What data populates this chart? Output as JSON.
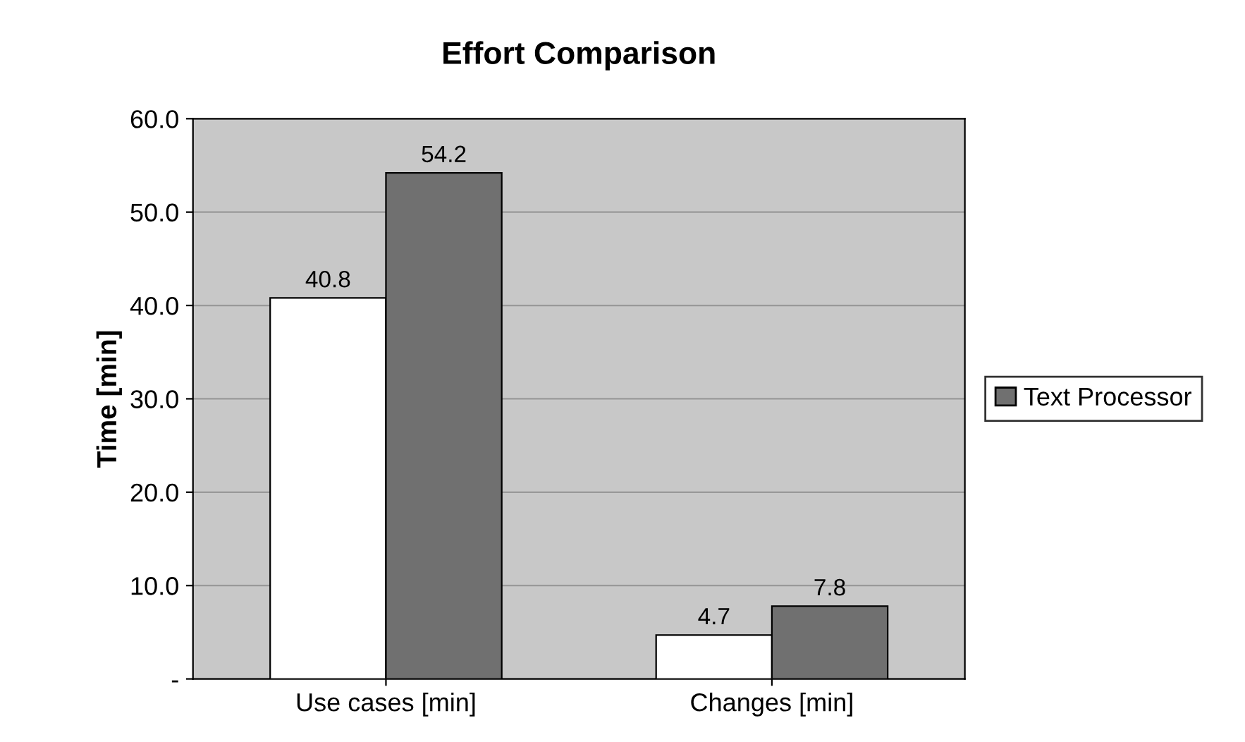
{
  "chart_data": {
    "type": "bar",
    "title": "Effort Comparison",
    "ylabel": "Time [min]",
    "categories": [
      "Use cases [min]",
      "Changes [min]"
    ],
    "series": [
      {
        "color": "#ffffff",
        "values": [
          40.8,
          4.7
        ]
      },
      {
        "name": "Text Processor",
        "color": "#707070",
        "values": [
          54.2,
          7.8
        ]
      }
    ],
    "ylim": [
      0,
      60
    ],
    "yticks": [
      {
        "value": 0,
        "label": "-"
      },
      {
        "value": 10,
        "label": "10.0"
      },
      {
        "value": 20,
        "label": "20.0"
      },
      {
        "value": 30,
        "label": "30.0"
      },
      {
        "value": 40,
        "label": "40.0"
      },
      {
        "value": 50,
        "label": "50.0"
      },
      {
        "value": 60,
        "label": "60.0"
      }
    ],
    "grid": "y",
    "legend": "right",
    "data_labels": true
  }
}
